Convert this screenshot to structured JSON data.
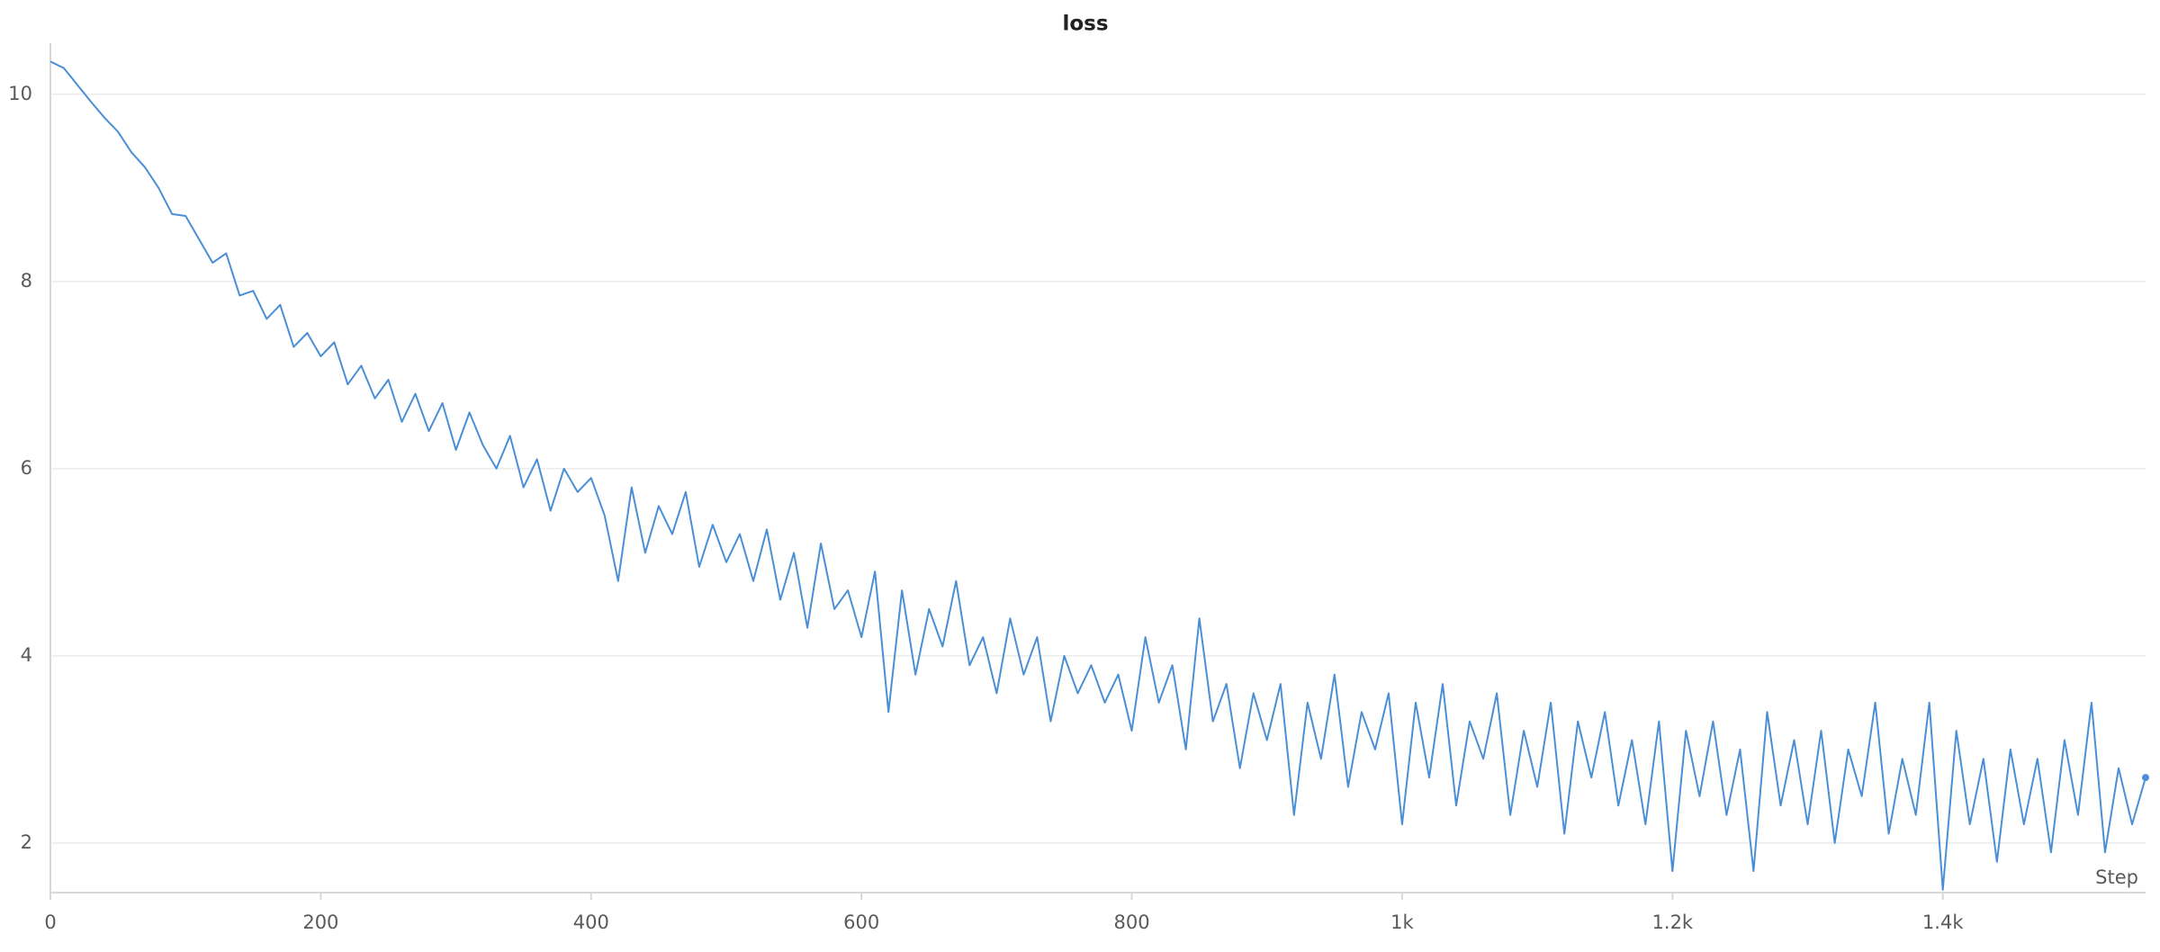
{
  "chart_data": {
    "type": "line",
    "title": "loss",
    "x_label": "Step",
    "xlim": [
      0,
      1550
    ],
    "ylim": [
      1.47,
      10.45
    ],
    "xticks": [
      0,
      200,
      400,
      600,
      800,
      {
        "value": 1000,
        "label": "1k"
      },
      {
        "value": 1200,
        "label": "1.2k"
      },
      {
        "value": 1400,
        "label": "1.4k"
      }
    ],
    "yticks": [
      2,
      4,
      6,
      8,
      10
    ],
    "grid": true,
    "x": [
      0,
      10,
      20,
      30,
      40,
      50,
      60,
      70,
      80,
      90,
      100,
      110,
      120,
      130,
      140,
      150,
      160,
      170,
      180,
      190,
      200,
      210,
      220,
      230,
      240,
      250,
      260,
      270,
      280,
      290,
      300,
      310,
      320,
      330,
      340,
      350,
      360,
      370,
      380,
      390,
      400,
      410,
      420,
      430,
      440,
      450,
      460,
      470,
      480,
      490,
      500,
      510,
      520,
      530,
      540,
      550,
      560,
      570,
      580,
      590,
      600,
      610,
      620,
      630,
      640,
      650,
      660,
      670,
      680,
      690,
      700,
      710,
      720,
      730,
      740,
      750,
      760,
      770,
      780,
      790,
      800,
      810,
      820,
      830,
      840,
      850,
      860,
      870,
      880,
      890,
      900,
      910,
      920,
      930,
      940,
      950,
      960,
      970,
      980,
      990,
      1000,
      1010,
      1020,
      1030,
      1040,
      1050,
      1060,
      1070,
      1080,
      1090,
      1100,
      1110,
      1120,
      1130,
      1140,
      1150,
      1160,
      1170,
      1180,
      1190,
      1200,
      1210,
      1220,
      1230,
      1240,
      1250,
      1260,
      1270,
      1280,
      1290,
      1300,
      1310,
      1320,
      1330,
      1340,
      1350,
      1360,
      1370,
      1380,
      1390,
      1400,
      1410,
      1420,
      1430,
      1440,
      1450,
      1460,
      1470,
      1480,
      1490,
      1500,
      1510,
      1520,
      1530,
      1540,
      1550
    ],
    "series": [
      {
        "name": "loss",
        "color": "#4a8fd6",
        "values": [
          10.35,
          10.28,
          10.1,
          9.92,
          9.75,
          9.6,
          9.38,
          9.22,
          9.0,
          8.72,
          8.7,
          8.45,
          8.2,
          8.3,
          7.85,
          7.9,
          7.6,
          7.75,
          7.3,
          7.45,
          7.2,
          7.35,
          6.9,
          7.1,
          6.75,
          6.95,
          6.5,
          6.8,
          6.4,
          6.7,
          6.2,
          6.6,
          6.25,
          6.0,
          6.35,
          5.8,
          6.1,
          5.55,
          6.0,
          5.75,
          5.9,
          5.5,
          4.8,
          5.8,
          5.1,
          5.6,
          5.3,
          5.75,
          4.95,
          5.4,
          5.0,
          5.3,
          4.8,
          5.35,
          4.6,
          5.1,
          4.3,
          5.2,
          4.5,
          4.7,
          4.2,
          4.9,
          3.4,
          4.7,
          3.8,
          4.5,
          4.1,
          4.8,
          3.9,
          4.2,
          3.6,
          4.4,
          3.8,
          4.2,
          3.3,
          4.0,
          3.6,
          3.9,
          3.5,
          3.8,
          3.2,
          4.2,
          3.5,
          3.9,
          3.0,
          4.4,
          3.3,
          3.7,
          2.8,
          3.6,
          3.1,
          3.7,
          2.3,
          3.5,
          2.9,
          3.8,
          2.6,
          3.4,
          3.0,
          3.6,
          2.2,
          3.5,
          2.7,
          3.7,
          2.4,
          3.3,
          2.9,
          3.6,
          2.3,
          3.2,
          2.6,
          3.5,
          2.1,
          3.3,
          2.7,
          3.4,
          2.4,
          3.1,
          2.2,
          3.3,
          1.7,
          3.2,
          2.5,
          3.3,
          2.3,
          3.0,
          1.7,
          3.4,
          2.4,
          3.1,
          2.2,
          3.2,
          2.0,
          3.0,
          2.5,
          3.5,
          2.1,
          2.9,
          2.3,
          3.5,
          1.5,
          3.2,
          2.2,
          2.9,
          1.8,
          3.0,
          2.2,
          2.9,
          1.9,
          3.1,
          2.3,
          3.5,
          1.9,
          2.8,
          2.2,
          2.7
        ]
      }
    ]
  }
}
